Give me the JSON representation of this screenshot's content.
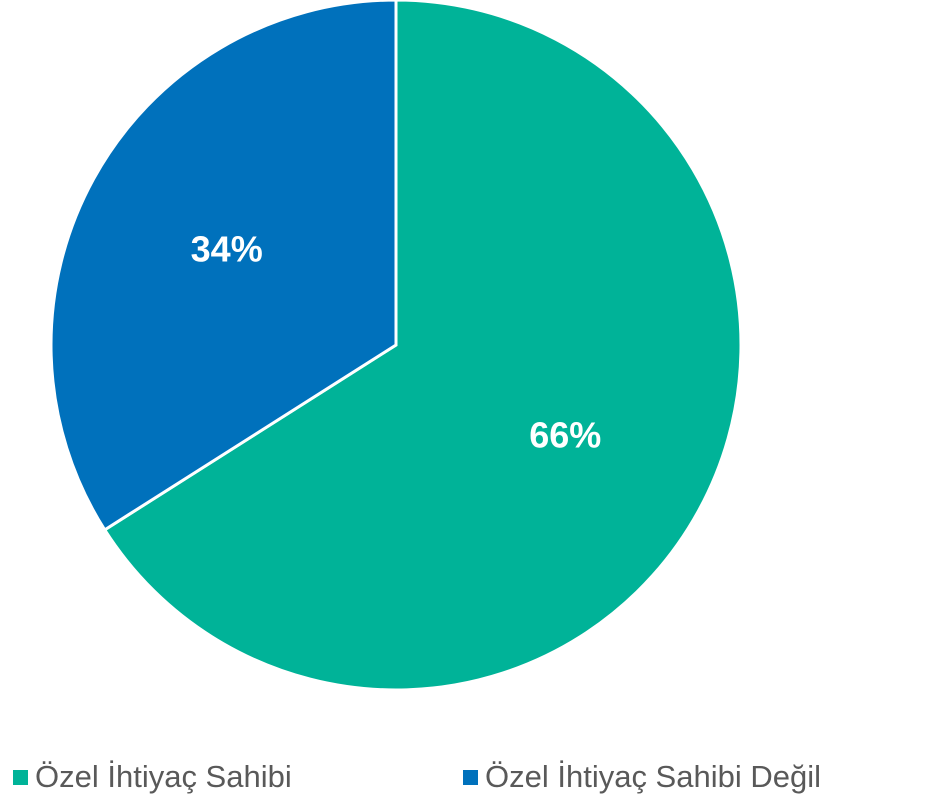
{
  "chart_data": {
    "type": "pie",
    "categories": [
      "Özel İhtiyaç Sahibi",
      "Özel İhtiyaç Sahibi Değil"
    ],
    "values": [
      66,
      34
    ],
    "value_labels": [
      "66%",
      "34%"
    ],
    "colors": [
      "#00b398",
      "#0071bc"
    ],
    "legend": "bottom"
  }
}
